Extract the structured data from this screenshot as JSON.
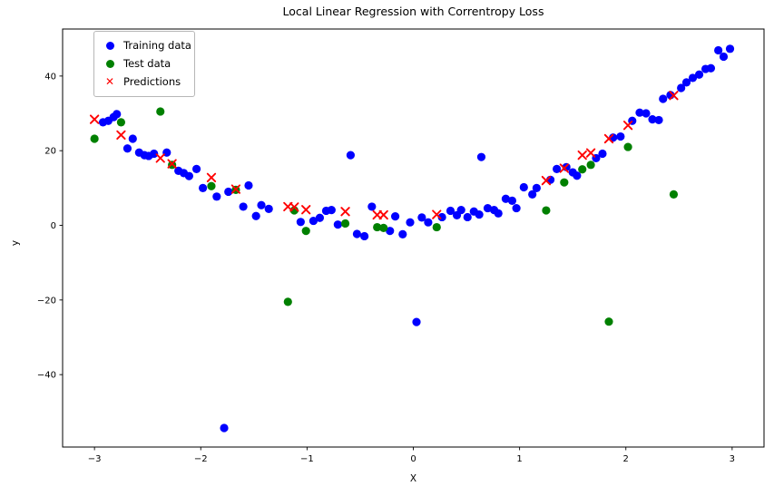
{
  "chart_data": {
    "type": "scatter",
    "title": "Local Linear Regression with Correntropy Loss",
    "xlabel": "X",
    "ylabel": "y",
    "xlim": [
      -3.3,
      3.3
    ],
    "ylim": [
      -59.4,
      52.6
    ],
    "xticks": [
      -3,
      -2,
      -1,
      0,
      1,
      2,
      3
    ],
    "yticks": [
      -40,
      -20,
      0,
      20,
      40
    ],
    "grid": false,
    "legend_position": "upper left",
    "series": [
      {
        "name": "Training data",
        "marker": "circle",
        "color": "#0000ff",
        "points": [
          [
            -2.92,
            27.6
          ],
          [
            -2.87,
            28.0
          ],
          [
            -2.82,
            29.0
          ],
          [
            -2.79,
            29.8
          ],
          [
            -2.69,
            20.6
          ],
          [
            -2.64,
            23.2
          ],
          [
            -2.58,
            19.5
          ],
          [
            -2.53,
            18.8
          ],
          [
            -2.49,
            18.6
          ],
          [
            -2.44,
            19.2
          ],
          [
            -2.32,
            19.5
          ],
          [
            -2.21,
            14.6
          ],
          [
            -2.16,
            14.0
          ],
          [
            -2.11,
            13.2
          ],
          [
            -2.04,
            15.1
          ],
          [
            -1.98,
            10.0
          ],
          [
            -1.85,
            7.7
          ],
          [
            -1.78,
            -54.3
          ],
          [
            -1.74,
            9.0
          ],
          [
            -1.6,
            5.0
          ],
          [
            -1.55,
            10.7
          ],
          [
            -1.48,
            2.5
          ],
          [
            -1.43,
            5.4
          ],
          [
            -1.36,
            4.4
          ],
          [
            -1.06,
            0.9
          ],
          [
            -0.94,
            1.2
          ],
          [
            -0.88,
            2.0
          ],
          [
            -0.82,
            3.9
          ],
          [
            -0.77,
            4.1
          ],
          [
            -0.71,
            0.2
          ],
          [
            -0.59,
            18.8
          ],
          [
            -0.53,
            -2.3
          ],
          [
            -0.46,
            -2.9
          ],
          [
            -0.39,
            5.0
          ],
          [
            -0.22,
            -1.5
          ],
          [
            -0.17,
            2.4
          ],
          [
            -0.1,
            -2.4
          ],
          [
            -0.03,
            0.8
          ],
          [
            0.03,
            -25.9
          ],
          [
            0.08,
            2.1
          ],
          [
            0.14,
            0.8
          ],
          [
            0.27,
            2.2
          ],
          [
            0.35,
            3.9
          ],
          [
            0.41,
            2.7
          ],
          [
            0.45,
            4.1
          ],
          [
            0.51,
            2.2
          ],
          [
            0.57,
            3.7
          ],
          [
            0.62,
            2.9
          ],
          [
            0.64,
            18.3
          ],
          [
            0.7,
            4.6
          ],
          [
            0.76,
            4.1
          ],
          [
            0.8,
            3.2
          ],
          [
            0.87,
            7.1
          ],
          [
            0.93,
            6.6
          ],
          [
            0.97,
            4.6
          ],
          [
            1.04,
            10.2
          ],
          [
            1.12,
            8.3
          ],
          [
            1.16,
            10.0
          ],
          [
            1.29,
            12.2
          ],
          [
            1.35,
            15.1
          ],
          [
            1.44,
            15.6
          ],
          [
            1.5,
            14.2
          ],
          [
            1.54,
            13.3
          ],
          [
            1.72,
            18.0
          ],
          [
            1.78,
            19.2
          ],
          [
            1.88,
            23.5
          ],
          [
            1.95,
            23.8
          ],
          [
            2.06,
            28.0
          ],
          [
            2.13,
            30.2
          ],
          [
            2.19,
            30.0
          ],
          [
            2.25,
            28.4
          ],
          [
            2.31,
            28.2
          ],
          [
            2.35,
            33.9
          ],
          [
            2.42,
            34.9
          ],
          [
            2.52,
            36.8
          ],
          [
            2.57,
            38.3
          ],
          [
            2.63,
            39.5
          ],
          [
            2.69,
            40.4
          ],
          [
            2.75,
            41.9
          ],
          [
            2.8,
            42.1
          ],
          [
            2.87,
            46.9
          ],
          [
            2.92,
            45.2
          ],
          [
            2.98,
            47.3
          ]
        ]
      },
      {
        "name": "Test data",
        "marker": "circle",
        "color": "#008000",
        "points": [
          [
            -3.0,
            23.2
          ],
          [
            -2.75,
            27.6
          ],
          [
            -2.38,
            30.5
          ],
          [
            -2.27,
            16.2
          ],
          [
            -1.9,
            10.5
          ],
          [
            -1.67,
            9.5
          ],
          [
            -1.18,
            -20.5
          ],
          [
            -1.12,
            4.0
          ],
          [
            -1.01,
            -1.5
          ],
          [
            -0.64,
            0.5
          ],
          [
            -0.34,
            -0.5
          ],
          [
            -0.28,
            -0.7
          ],
          [
            0.22,
            -0.5
          ],
          [
            1.25,
            4.0
          ],
          [
            1.42,
            11.5
          ],
          [
            1.59,
            15.0
          ],
          [
            1.67,
            16.2
          ],
          [
            1.84,
            -25.8
          ],
          [
            2.02,
            21.0
          ],
          [
            2.45,
            8.3
          ]
        ]
      },
      {
        "name": "Predictions",
        "marker": "x",
        "color": "#ff0000",
        "points": [
          [
            -3.0,
            28.4
          ],
          [
            -2.75,
            24.2
          ],
          [
            -2.38,
            18.0
          ],
          [
            -2.27,
            16.5
          ],
          [
            -1.9,
            12.8
          ],
          [
            -1.67,
            9.7
          ],
          [
            -1.18,
            5.0
          ],
          [
            -1.12,
            4.9
          ],
          [
            -1.01,
            4.2
          ],
          [
            -0.64,
            3.7
          ],
          [
            -0.34,
            2.8
          ],
          [
            -0.28,
            2.8
          ],
          [
            0.22,
            2.9
          ],
          [
            1.25,
            12.0
          ],
          [
            1.42,
            15.3
          ],
          [
            1.59,
            18.8
          ],
          [
            1.67,
            19.4
          ],
          [
            1.84,
            23.2
          ],
          [
            2.02,
            26.8
          ],
          [
            2.45,
            34.8
          ]
        ]
      }
    ]
  }
}
